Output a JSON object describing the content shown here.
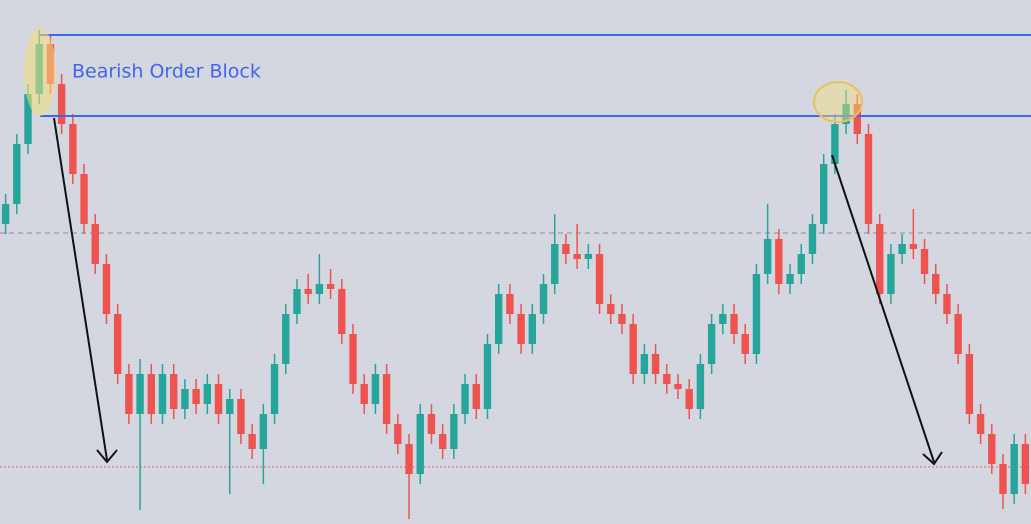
{
  "chart_data": {
    "type": "candlestick",
    "up_color": "#26a69a",
    "down_color": "#ef5350",
    "ylim": [
      0,
      524
    ],
    "open": [
      300,
      320,
      380,
      430,
      480,
      440,
      400,
      350,
      300,
      260,
      210,
      150,
      110,
      150,
      110,
      150,
      115,
      135,
      120,
      140,
      110,
      125,
      90,
      75,
      110,
      160,
      210,
      235,
      230,
      240,
      235,
      190,
      140,
      120,
      150,
      100,
      80,
      50,
      110,
      90,
      75,
      110,
      140,
      115,
      180,
      230,
      210,
      180,
      210,
      240,
      280,
      270,
      265,
      270,
      220,
      210,
      200,
      150,
      170,
      150,
      140,
      135,
      115,
      160,
      200,
      210,
      190,
      170,
      250,
      285,
      240,
      250,
      270,
      300,
      360,
      400,
      420,
      390,
      300,
      230,
      270,
      280,
      275,
      250,
      230,
      210,
      170,
      110,
      90,
      60,
      30,
      80
    ],
    "high": [
      330,
      390,
      440,
      494,
      490,
      450,
      410,
      360,
      310,
      270,
      220,
      160,
      165,
      160,
      160,
      160,
      145,
      145,
      150,
      150,
      135,
      135,
      100,
      120,
      170,
      220,
      245,
      250,
      270,
      255,
      245,
      200,
      150,
      160,
      160,
      110,
      90,
      120,
      120,
      100,
      120,
      150,
      150,
      190,
      240,
      240,
      220,
      220,
      250,
      310,
      290,
      300,
      280,
      280,
      230,
      220,
      210,
      180,
      180,
      160,
      150,
      145,
      170,
      210,
      220,
      220,
      200,
      260,
      320,
      295,
      260,
      280,
      310,
      370,
      410,
      434,
      430,
      400,
      310,
      280,
      290,
      315,
      285,
      260,
      240,
      220,
      180,
      120,
      100,
      70,
      90,
      90
    ],
    "low": [
      290,
      310,
      370,
      420,
      430,
      390,
      340,
      290,
      250,
      200,
      140,
      100,
      14,
      100,
      100,
      105,
      105,
      110,
      110,
      100,
      30,
      80,
      65,
      40,
      100,
      150,
      200,
      220,
      220,
      225,
      180,
      130,
      110,
      110,
      90,
      70,
      5,
      40,
      80,
      65,
      65,
      100,
      105,
      105,
      170,
      200,
      170,
      170,
      200,
      230,
      260,
      255,
      255,
      210,
      200,
      190,
      140,
      140,
      140,
      130,
      125,
      105,
      105,
      150,
      190,
      180,
      160,
      160,
      240,
      230,
      230,
      240,
      260,
      290,
      350,
      390,
      380,
      290,
      220,
      220,
      260,
      265,
      240,
      220,
      200,
      160,
      100,
      80,
      50,
      15,
      20,
      30
    ],
    "close": [
      320,
      380,
      430,
      480,
      440,
      400,
      350,
      300,
      260,
      210,
      150,
      110,
      150,
      110,
      150,
      115,
      135,
      120,
      140,
      110,
      125,
      90,
      75,
      110,
      160,
      210,
      235,
      230,
      240,
      235,
      190,
      140,
      120,
      150,
      100,
      80,
      50,
      110,
      90,
      75,
      110,
      140,
      115,
      180,
      230,
      210,
      180,
      210,
      240,
      280,
      270,
      265,
      270,
      220,
      210,
      200,
      150,
      170,
      150,
      140,
      135,
      115,
      160,
      200,
      210,
      190,
      170,
      250,
      285,
      240,
      250,
      270,
      300,
      360,
      400,
      420,
      390,
      300,
      230,
      270,
      280,
      275,
      250,
      230,
      210,
      170,
      110,
      90,
      60,
      30,
      80,
      40
    ],
    "order_block": {
      "label": "Bearish Order Block",
      "top": 489,
      "bottom": 408,
      "color": "#3f66ee"
    },
    "levels": [
      {
        "value": 291,
        "color": "#8a8c96",
        "style": "dashed"
      },
      {
        "value": 57,
        "color": "#e0607a",
        "style": "dotted"
      }
    ]
  }
}
